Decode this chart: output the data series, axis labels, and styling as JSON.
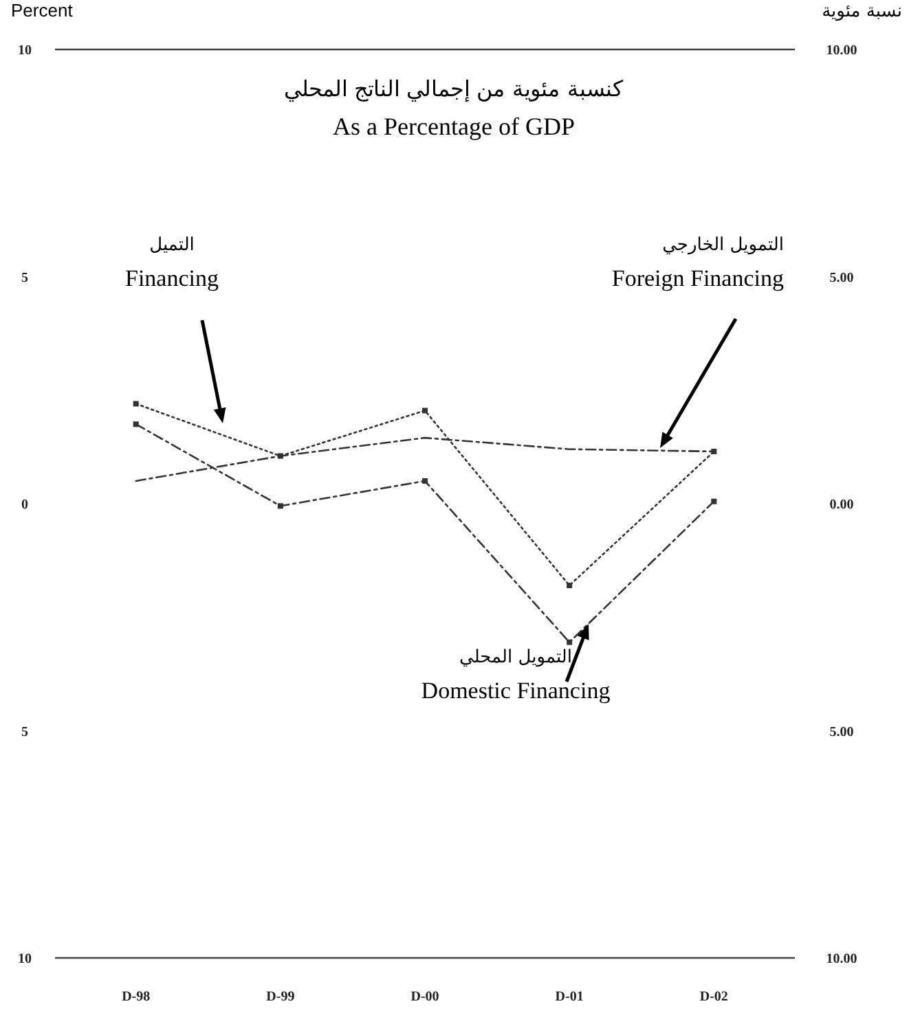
{
  "chart_data": {
    "type": "line",
    "title": "كنسبة مئوية من إجمالي الناتج المحلي",
    "subtitle": "As a Percentage of GDP",
    "ylabel": "Percent",
    "y2label": "نسبة مئوية",
    "categories": [
      "D-98",
      "D-99",
      "D-00",
      "D-01",
      "D-02"
    ],
    "ylim": [
      -10,
      10
    ],
    "yticks": [
      {
        "value": -10,
        "label": "10"
      },
      {
        "value": -5,
        "label": "5"
      },
      0,
      5,
      10
    ],
    "y2lim": [
      -10,
      10
    ],
    "y2ticks": [
      {
        "value": -10,
        "label": "10.00"
      },
      {
        "value": -5,
        "label": "5.00"
      },
      {
        "value": 0,
        "label": "0.00"
      },
      {
        "value": 5,
        "label": "5.00"
      },
      {
        "value": 10,
        "label": "10.00"
      }
    ],
    "grid": false,
    "series": [
      {
        "name": "التميل\nFinancing",
        "color": "#333333",
        "values": [
          2.2,
          1.05,
          2.05,
          -1.8,
          1.15
        ],
        "line_style": "dotted",
        "marker": "square"
      },
      {
        "name": "التمويل الخارجي\nForeign Financing",
        "color": "#333333",
        "values": [
          0.5,
          1.05,
          1.45,
          1.2,
          1.15
        ],
        "line_style": "dashed",
        "marker": "none"
      },
      {
        "name": "التمويل المحلي\nDomestic Financing",
        "color": "#333333",
        "values": [
          1.75,
          -0.05,
          0.5,
          -3.05,
          0.05
        ],
        "line_style": "dashed",
        "marker": "square"
      }
    ]
  }
}
